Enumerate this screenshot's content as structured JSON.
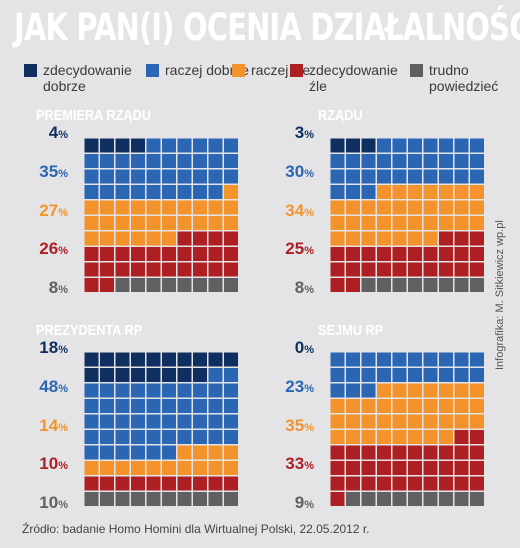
{
  "title": "JAK PAN(I) OCENIA DZIAŁALNOŚĆ:",
  "legend": [
    {
      "label": "zdecydowanie dobrze",
      "color": "#0e2f5f"
    },
    {
      "label": "raczej dobrze",
      "color": "#2a66b3"
    },
    {
      "label": "raczej źle",
      "color": "#f4932b"
    },
    {
      "label": "zdecydowanie źle",
      "color": "#ad1f23"
    },
    {
      "label": "trudno powiedzieć",
      "color": "#606062"
    }
  ],
  "chart_data": [
    {
      "type": "waffle",
      "title": "PREMIERA RZĄDU",
      "categories": [
        "zdecydowanie dobrze",
        "raczej dobrze",
        "raczej źle",
        "zdecydowanie źle",
        "trudno powiedzieć"
      ],
      "values": [
        4,
        35,
        27,
        26,
        8
      ]
    },
    {
      "type": "waffle",
      "title": "RZĄDU",
      "categories": [
        "zdecydowanie dobrze",
        "raczej dobrze",
        "raczej źle",
        "zdecydowanie źle",
        "trudno powiedzieć"
      ],
      "values": [
        3,
        30,
        34,
        25,
        8
      ]
    },
    {
      "type": "waffle",
      "title": "PREZYDENTA RP",
      "categories": [
        "zdecydowanie dobrze",
        "raczej dobrze",
        "raczej źle",
        "zdecydowanie źle",
        "trudno powiedzieć"
      ],
      "values": [
        18,
        48,
        14,
        10,
        10
      ]
    },
    {
      "type": "waffle",
      "title": "SEJMU RP",
      "categories": [
        "zdecydowanie dobrze",
        "raczej dobrze",
        "raczej źle",
        "zdecydowanie źle",
        "trudno powiedzieć"
      ],
      "values": [
        0,
        23,
        35,
        33,
        9
      ]
    }
  ],
  "unit": "%",
  "source": "Źródło: badanie Homo Homini dla Wirtualnej Polski, 22.05.2012 r.",
  "credit": "Infografika: M. Sitkiewicz wp.pl"
}
